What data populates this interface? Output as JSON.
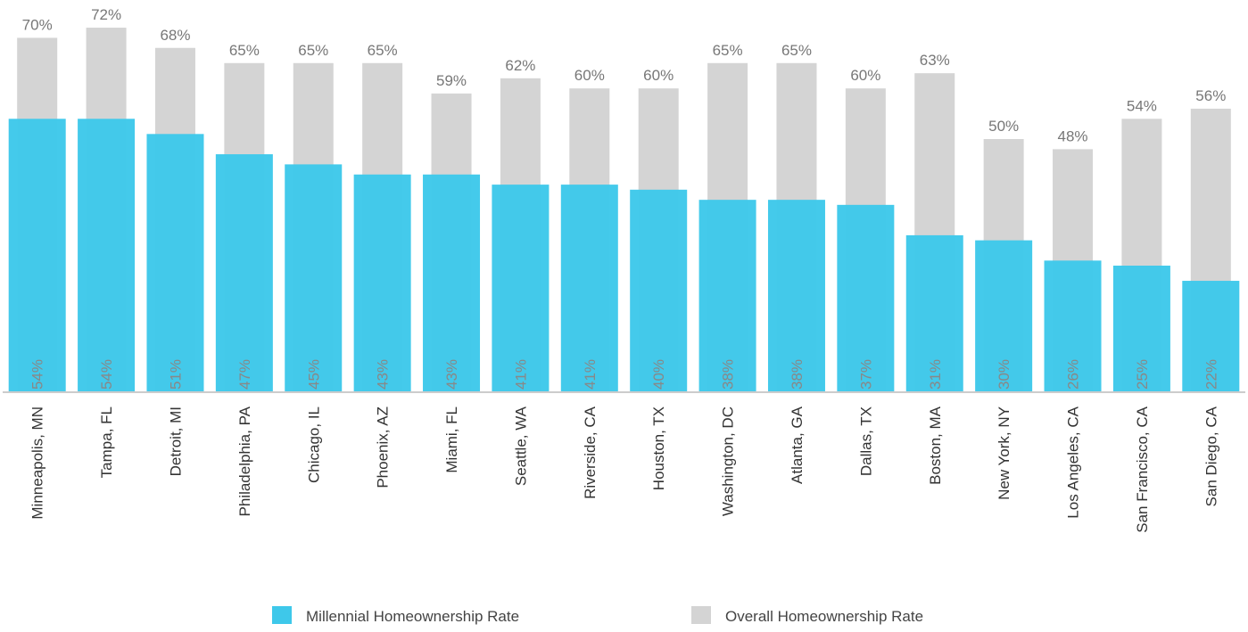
{
  "chart_data": {
    "type": "bar",
    "categories": [
      "Minneapolis, MN",
      "Tampa, FL",
      "Detroit, MI",
      "Philadelphia, PA",
      "Chicago, IL",
      "Phoenix, AZ",
      "Miami, FL",
      "Seattle, WA",
      "Riverside, CA",
      "Houston, TX",
      "Washington, DC",
      "Atlanta, GA",
      "Dallas, TX",
      "Boston, MA",
      "New York, NY",
      "Los Angeles, CA",
      "San Francisco, CA",
      "San Diego, CA"
    ],
    "series": [
      {
        "name": "Millennial Homeownership Rate",
        "color": "#3ec8ea",
        "values": [
          54,
          54,
          51,
          47,
          45,
          43,
          43,
          41,
          41,
          40,
          38,
          38,
          37,
          31,
          30,
          26,
          25,
          22
        ],
        "value_labels": [
          "54%",
          "54%",
          "51%",
          "47%",
          "45%",
          "43%",
          "43%",
          "41%",
          "41%",
          "40%",
          "38%",
          "38%",
          "37%",
          "31%",
          "30%",
          "26%",
          "25%",
          "22%"
        ]
      },
      {
        "name": "Overall Homeownership Rate",
        "color": "#d4d4d4",
        "values": [
          70,
          72,
          68,
          65,
          65,
          65,
          59,
          62,
          60,
          60,
          65,
          65,
          60,
          63,
          50,
          48,
          54,
          56
        ],
        "value_labels": [
          "70%",
          "72%",
          "68%",
          "65%",
          "65%",
          "65%",
          "59%",
          "62%",
          "60%",
          "60%",
          "65%",
          "65%",
          "60%",
          "63%",
          "50%",
          "48%",
          "54%",
          "56%"
        ]
      }
    ],
    "ylim": [
      0,
      75
    ],
    "legend": "bottom"
  }
}
